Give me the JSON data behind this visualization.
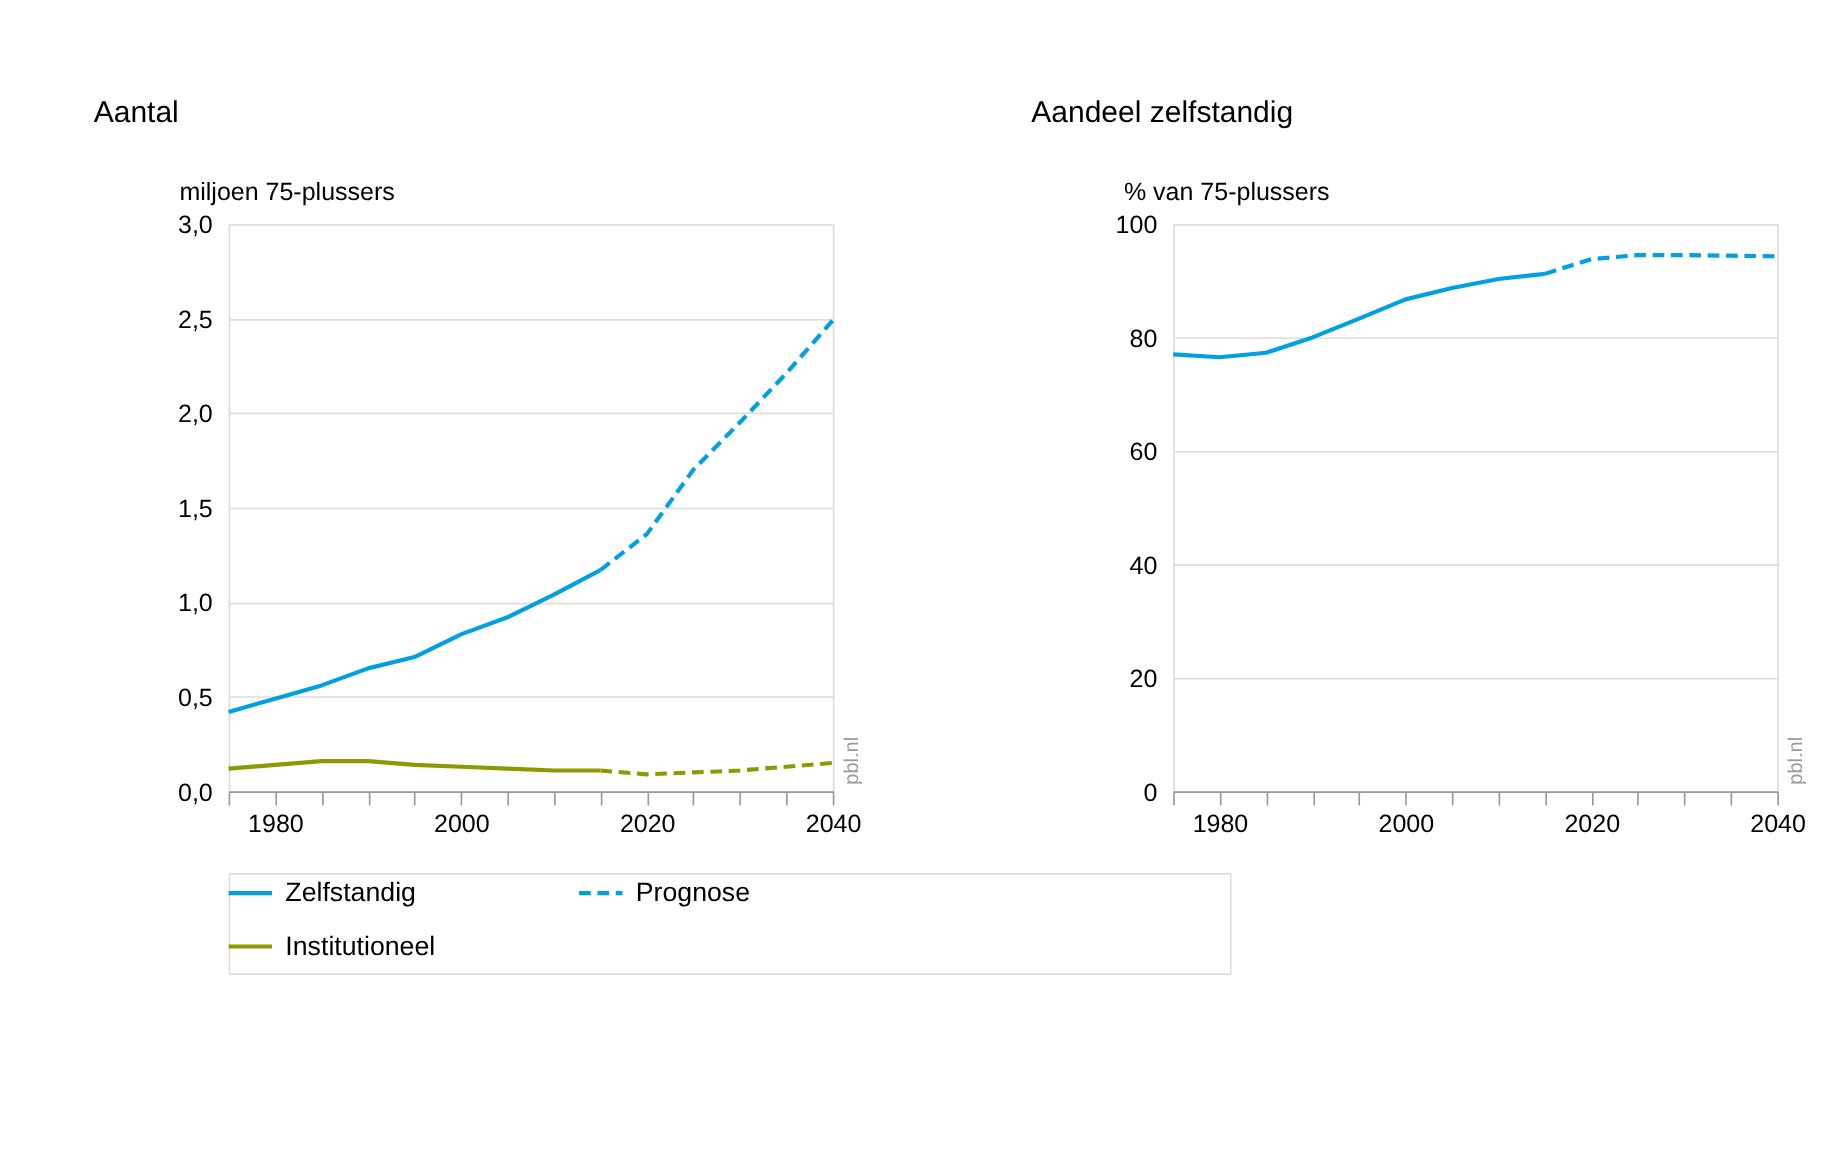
{
  "chart_data": [
    {
      "type": "line",
      "title": "Aantal",
      "ylabel": "miljoen 75-plussers",
      "xlim": [
        1975,
        2040
      ],
      "ylim": [
        0,
        3
      ],
      "xticks": [
        {
          "value": 1975,
          "label": null
        },
        1980,
        {
          "value": 1985,
          "label": null
        },
        {
          "value": 1990,
          "label": null
        },
        {
          "value": 1995,
          "label": null
        },
        2000,
        {
          "value": 2005,
          "label": null
        },
        {
          "value": 2010,
          "label": null
        },
        {
          "value": 2015,
          "label": null
        },
        2020,
        {
          "value": 2025,
          "label": null
        },
        {
          "value": 2030,
          "label": null
        },
        {
          "value": 2035,
          "label": null
        },
        2040
      ],
      "yticks": [
        {
          "value": 0,
          "label": "0,0"
        },
        {
          "value": 0.5,
          "label": "0,5"
        },
        {
          "value": 1,
          "label": "1,0"
        },
        {
          "value": 1.5,
          "label": "1,5"
        },
        {
          "value": 2,
          "label": "2,0"
        },
        {
          "value": 2.5,
          "label": "2,5"
        },
        {
          "value": 3,
          "label": "3,0"
        }
      ],
      "grid": "y",
      "legend": "bottom",
      "marker": "none",
      "annotations": [
        "pbl.nl"
      ],
      "series": [
        {
          "name": "Zelfstandig",
          "color": "#00a0e1",
          "line_style": "solid",
          "x": [
            1975,
            1980,
            1985,
            1990,
            1995,
            2000,
            2005,
            2010,
            2015
          ],
          "values": [
            0.42,
            0.49,
            0.56,
            0.65,
            0.71,
            0.83,
            0.92,
            1.04,
            1.17
          ]
        },
        {
          "name": "Institutioneel",
          "color": "#8c9a00",
          "line_style": "solid",
          "x": [
            1975,
            1980,
            1985,
            1990,
            1995,
            2000,
            2005,
            2010,
            2015
          ],
          "values": [
            0.12,
            0.14,
            0.16,
            0.16,
            0.14,
            0.13,
            0.12,
            0.11,
            0.11
          ]
        },
        {
          "name": "Prognose",
          "color": "#00a0e1",
          "line_style": "dashed",
          "x": [
            2015,
            2020,
            2025,
            2030,
            2035,
            2040
          ],
          "values": [
            1.17,
            1.36,
            1.7,
            1.95,
            2.21,
            2.49
          ]
        },
        {
          "color": "#8c9a00",
          "line_style": "dashed",
          "x": [
            2015,
            2020,
            2025,
            2030,
            2035,
            2040
          ],
          "values": [
            0.11,
            0.09,
            0.1,
            0.11,
            0.13,
            0.15
          ]
        }
      ]
    },
    {
      "type": "line",
      "title": "Aandeel zelfstandig",
      "ylabel": "% van 75-plussers",
      "xlim": [
        1975,
        2040
      ],
      "ylim": [
        0,
        100
      ],
      "xticks": [
        {
          "value": 1975,
          "label": null
        },
        1980,
        {
          "value": 1985,
          "label": null
        },
        {
          "value": 1990,
          "label": null
        },
        {
          "value": 1995,
          "label": null
        },
        2000,
        {
          "value": 2005,
          "label": null
        },
        {
          "value": 2010,
          "label": null
        },
        {
          "value": 2015,
          "label": null
        },
        2020,
        {
          "value": 2025,
          "label": null
        },
        {
          "value": 2030,
          "label": null
        },
        {
          "value": 2035,
          "label": null
        },
        2040
      ],
      "yticks": [
        0,
        20,
        40,
        60,
        80,
        100
      ],
      "grid": "y",
      "marker": "none",
      "annotations": [
        "pbl.nl"
      ],
      "series": [
        {
          "color": "#00a0e1",
          "line_style": "solid",
          "x": [
            1975,
            1980,
            1985,
            1990,
            1995,
            2000,
            2005,
            2010,
            2015
          ],
          "values": [
            77,
            76.5,
            77.3,
            80,
            83.3,
            86.7,
            88.7,
            90.3,
            91.2
          ]
        },
        {
          "color": "#00a0e1",
          "line_style": "dashed",
          "x": [
            2015,
            2020,
            2025,
            2030,
            2035,
            2040
          ],
          "values": [
            91.2,
            93.8,
            94.5,
            94.5,
            94.4,
            94.3
          ]
        }
      ]
    }
  ]
}
